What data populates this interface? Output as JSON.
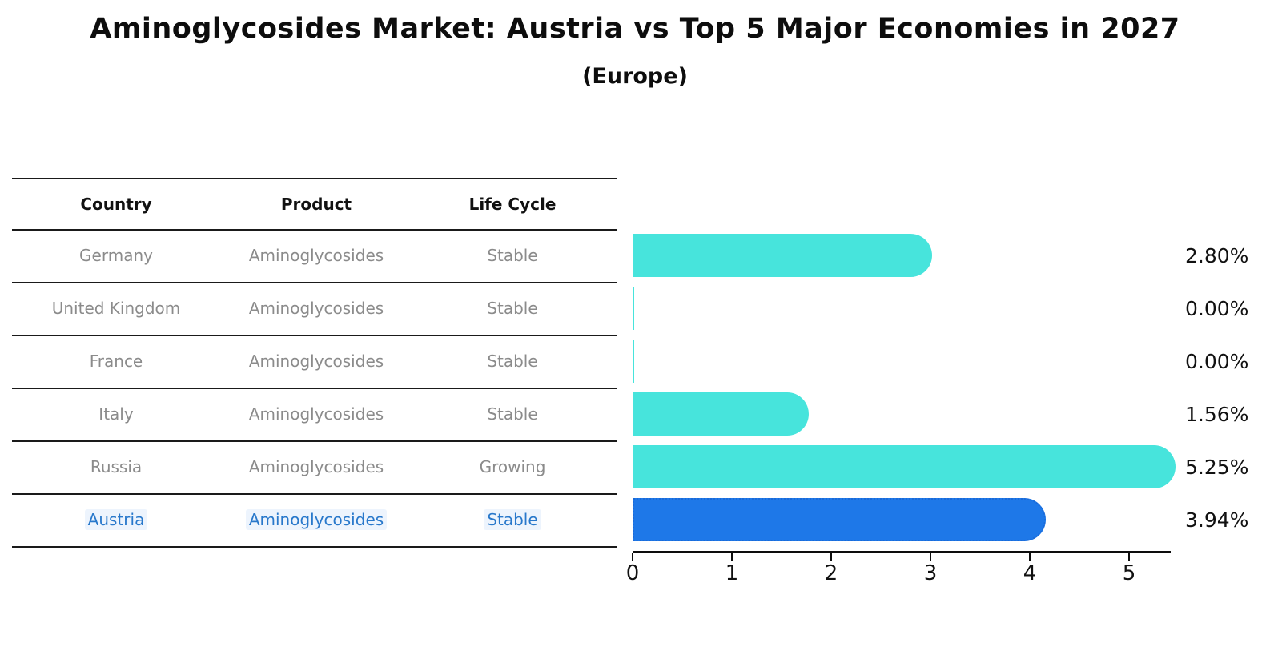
{
  "title": "Aminoglycosides Market: Austria vs Top 5 Major Economies in 2027",
  "subtitle": "(Europe)",
  "table": {
    "headers": [
      "Country",
      "Product",
      "Life Cycle"
    ],
    "rows": [
      {
        "country": "Germany",
        "product": "Aminoglycosides",
        "life_cycle": "Stable",
        "highlight": false
      },
      {
        "country": "United Kingdom",
        "product": "Aminoglycosides",
        "life_cycle": "Stable",
        "highlight": false
      },
      {
        "country": "France",
        "product": "Aminoglycosides",
        "life_cycle": "Stable",
        "highlight": false
      },
      {
        "country": "Italy",
        "product": "Aminoglycosides",
        "life_cycle": "Stable",
        "highlight": false
      },
      {
        "country": "Russia",
        "product": "Aminoglycosides",
        "life_cycle": "Growing",
        "highlight": false
      },
      {
        "country": "Austria",
        "product": "Aminoglycosides",
        "life_cycle": "Stable",
        "highlight": true
      }
    ]
  },
  "chart_data": {
    "type": "bar",
    "orientation": "horizontal",
    "title": "Aminoglycosides Market: Austria vs Top 5 Major Economies in 2027",
    "subtitle": "(Europe)",
    "categories": [
      "Germany",
      "United Kingdom",
      "France",
      "Italy",
      "Russia",
      "Austria"
    ],
    "values": [
      2.8,
      0.0,
      0.0,
      1.56,
      5.25,
      3.94
    ],
    "value_labels": [
      "2.80%",
      "0.00%",
      "0.00%",
      "1.56%",
      "5.25%",
      "3.94%"
    ],
    "x_ticks": [
      0,
      1,
      2,
      3,
      4,
      5
    ],
    "xlim": [
      0,
      5.5
    ],
    "xlabel": "",
    "ylabel": "",
    "grid": false,
    "legend": false,
    "highlight_index": 5
  },
  "colors": {
    "bar": "#47e4dc",
    "highlight_bar": "#1e78e8",
    "highlight_border": "#1a6ad8",
    "highlight_text": "#2878cb",
    "row_text": "#8b8b8b",
    "header_text": "#111111",
    "axis": "#0d0d0d"
  }
}
